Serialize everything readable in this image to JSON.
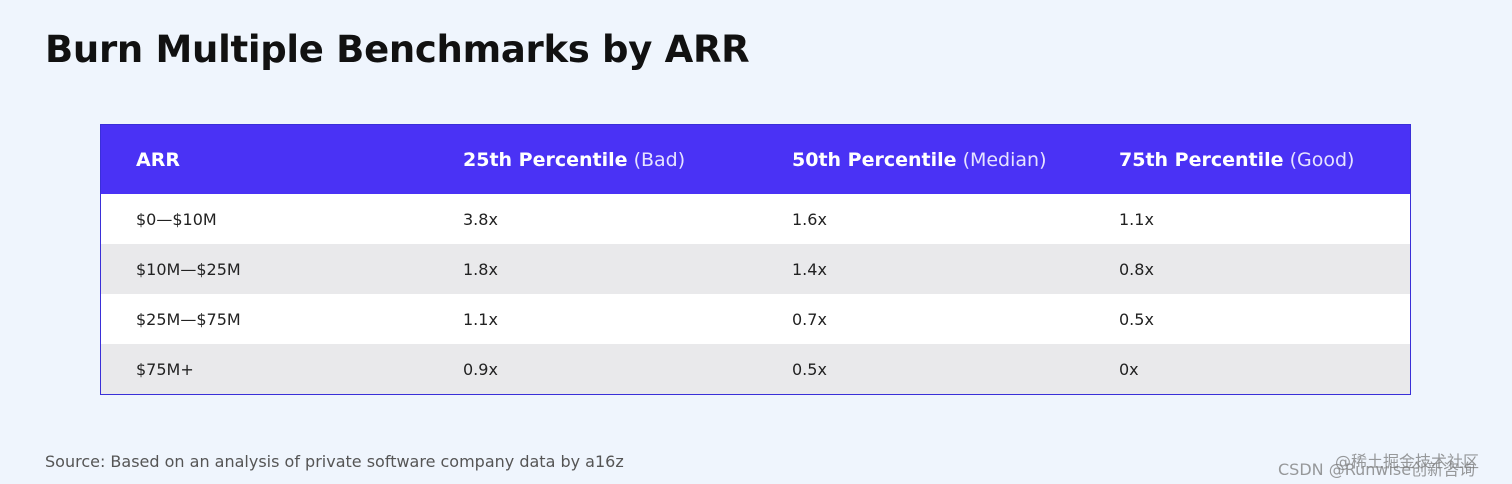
{
  "header": {
    "title": "Burn Multiple Benchmarks by ARR"
  },
  "table": {
    "columns": [
      {
        "label": "ARR"
      },
      {
        "label": "25th Percentile",
        "note": "(Bad)"
      },
      {
        "label": "50th Percentile",
        "note": "(Median)"
      },
      {
        "label": "75th Percentile",
        "note": "(Good)"
      }
    ],
    "rows": [
      [
        "$0—$10M",
        "3.8x",
        "1.6x",
        "1.1x"
      ],
      [
        "$10M—$25M",
        "1.8x",
        "1.4x",
        "0.8x"
      ],
      [
        "$25M—$75M",
        "1.1x",
        "0.7x",
        "0.5x"
      ],
      [
        "$75M+",
        "0.9x",
        "0.5x",
        "0x"
      ]
    ]
  },
  "footer": {
    "source": "Source: Based on an analysis of private software company data by a16z"
  },
  "watermarks": [
    "@稀土掘金技术社区",
    "CSDN @Runwise创新咨询"
  ]
}
